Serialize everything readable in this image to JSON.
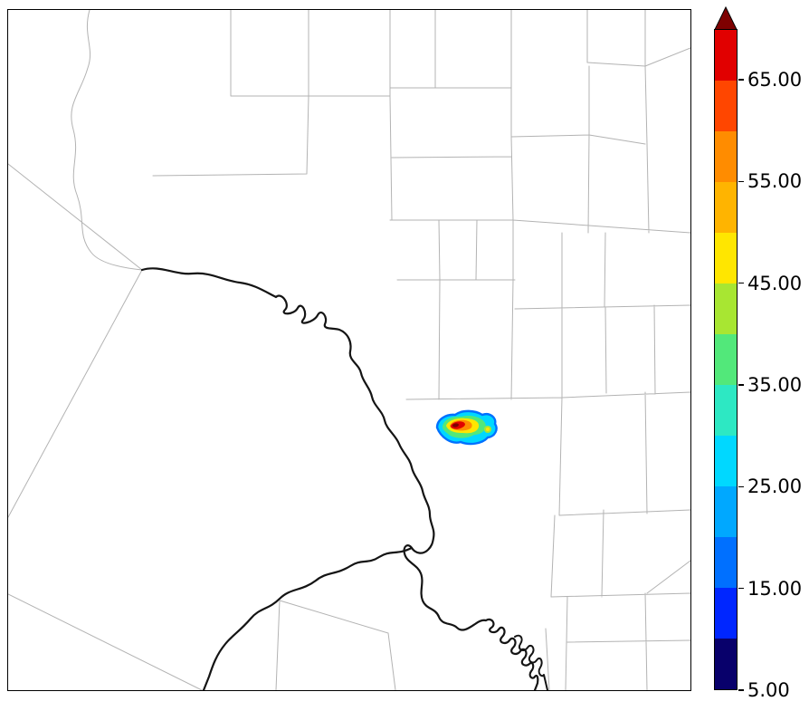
{
  "chart_data": {
    "type": "heatmap",
    "title": "",
    "description": "Filled-contour reflectivity cell plotted over a county map with a thick state/river boundary; vertical colorbar at right with an over-range arrow.",
    "legend_position": "right",
    "colorbar": {
      "orientation": "vertical",
      "min": 5,
      "max": 70,
      "step": 5,
      "tick_values": [
        65,
        55,
        45,
        35,
        25,
        15,
        5
      ],
      "tick_labels": [
        "65.00",
        "55.00",
        "45.00",
        "35.00",
        "25.00",
        "15.00",
        "5.00"
      ],
      "levels": [
        5,
        10,
        15,
        20,
        25,
        30,
        35,
        40,
        45,
        50,
        55,
        60,
        65,
        70
      ],
      "colors_bottom_to_top": [
        "#08006b",
        "#0026ff",
        "#0070ff",
        "#00a8ff",
        "#00d8ff",
        "#2de8c3",
        "#52e87a",
        "#a8e632",
        "#ffe600",
        "#ffb400",
        "#ff8c00",
        "#ff4600",
        "#e10000"
      ],
      "over_arrow_color": "#7e0000"
    },
    "cells": [
      {
        "name": "storm-cell",
        "center_frac": {
          "x": 0.665,
          "y": 0.61
        },
        "width_frac": 0.085,
        "height_frac": 0.053,
        "peak_value": 70,
        "contour_levels_present": [
          15,
          25,
          35,
          45,
          55,
          65,
          70
        ]
      }
    ],
    "map": {
      "background": "#ffffff",
      "county_line_color": "#b3b3b3",
      "boundary_color": "#141414"
    }
  }
}
